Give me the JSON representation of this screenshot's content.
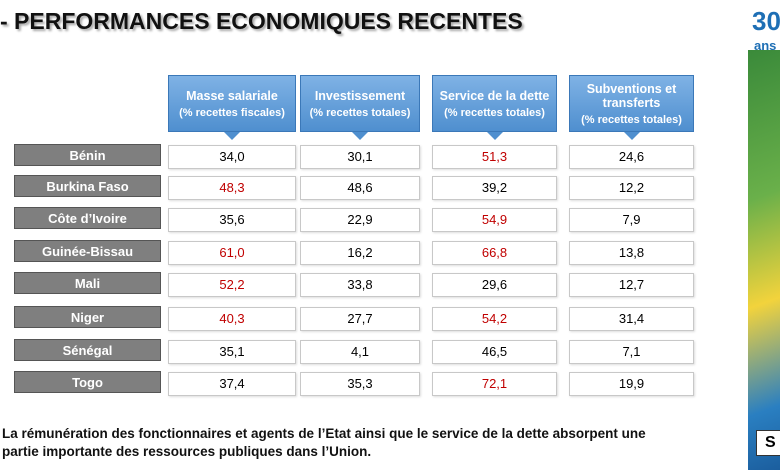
{
  "title": "- PERFORMANCES ECONOMIQUES RECENTES",
  "logo": {
    "number": "30",
    "word": "ans",
    "tag": "S"
  },
  "table": {
    "headers": [
      {
        "main": "Masse salariale",
        "sub": "(% recettes fiscales)"
      },
      {
        "main": "Investissement",
        "sub": "(% recettes totales)"
      },
      {
        "main": "Service de la dette",
        "sub": "(% recettes totales)"
      },
      {
        "main": "Subventions et transferts",
        "sub": "(% recettes totales)"
      }
    ],
    "rows": [
      {
        "country": "Bénin",
        "values": [
          "34,0",
          "30,1",
          "51,3",
          "24,6"
        ],
        "colors": [
          "#000000",
          "#000000",
          "#c00000",
          "#000000"
        ]
      },
      {
        "country": "Burkina Faso",
        "values": [
          "48,3",
          "48,6",
          "39,2",
          "12,2"
        ],
        "colors": [
          "#c00000",
          "#000000",
          "#000000",
          "#000000"
        ]
      },
      {
        "country": "Côte d’Ivoire",
        "values": [
          "35,6",
          "22,9",
          "54,9",
          "7,9"
        ],
        "colors": [
          "#000000",
          "#000000",
          "#c00000",
          "#000000"
        ]
      },
      {
        "country": "Guinée-Bissau",
        "values": [
          "61,0",
          "16,2",
          "66,8",
          "13,8"
        ],
        "colors": [
          "#c00000",
          "#000000",
          "#c00000",
          "#000000"
        ]
      },
      {
        "country": "Mali",
        "values": [
          "52,2",
          "33,8",
          "29,6",
          "12,7"
        ],
        "colors": [
          "#c00000",
          "#000000",
          "#000000",
          "#000000"
        ]
      },
      {
        "country": "Niger",
        "values": [
          "40,3",
          "27,7",
          "54,2",
          "31,4"
        ],
        "colors": [
          "#c00000",
          "#000000",
          "#c00000",
          "#000000"
        ]
      },
      {
        "country": "Sénégal",
        "values": [
          "35,1",
          "4,1",
          "46,5",
          "7,1"
        ],
        "colors": [
          "#000000",
          "#000000",
          "#000000",
          "#000000"
        ]
      },
      {
        "country": "Togo",
        "values": [
          "37,4",
          "35,3",
          "72,1",
          "19,9"
        ],
        "colors": [
          "#000000",
          "#000000",
          "#c00000",
          "#000000"
        ]
      }
    ]
  },
  "footer": [
    "La rémunération des fonctionnaires et agents de l’Etat ainsi que le service de la dette absorpent une",
    "partie importante des ressources publiques dans l’Union."
  ]
}
